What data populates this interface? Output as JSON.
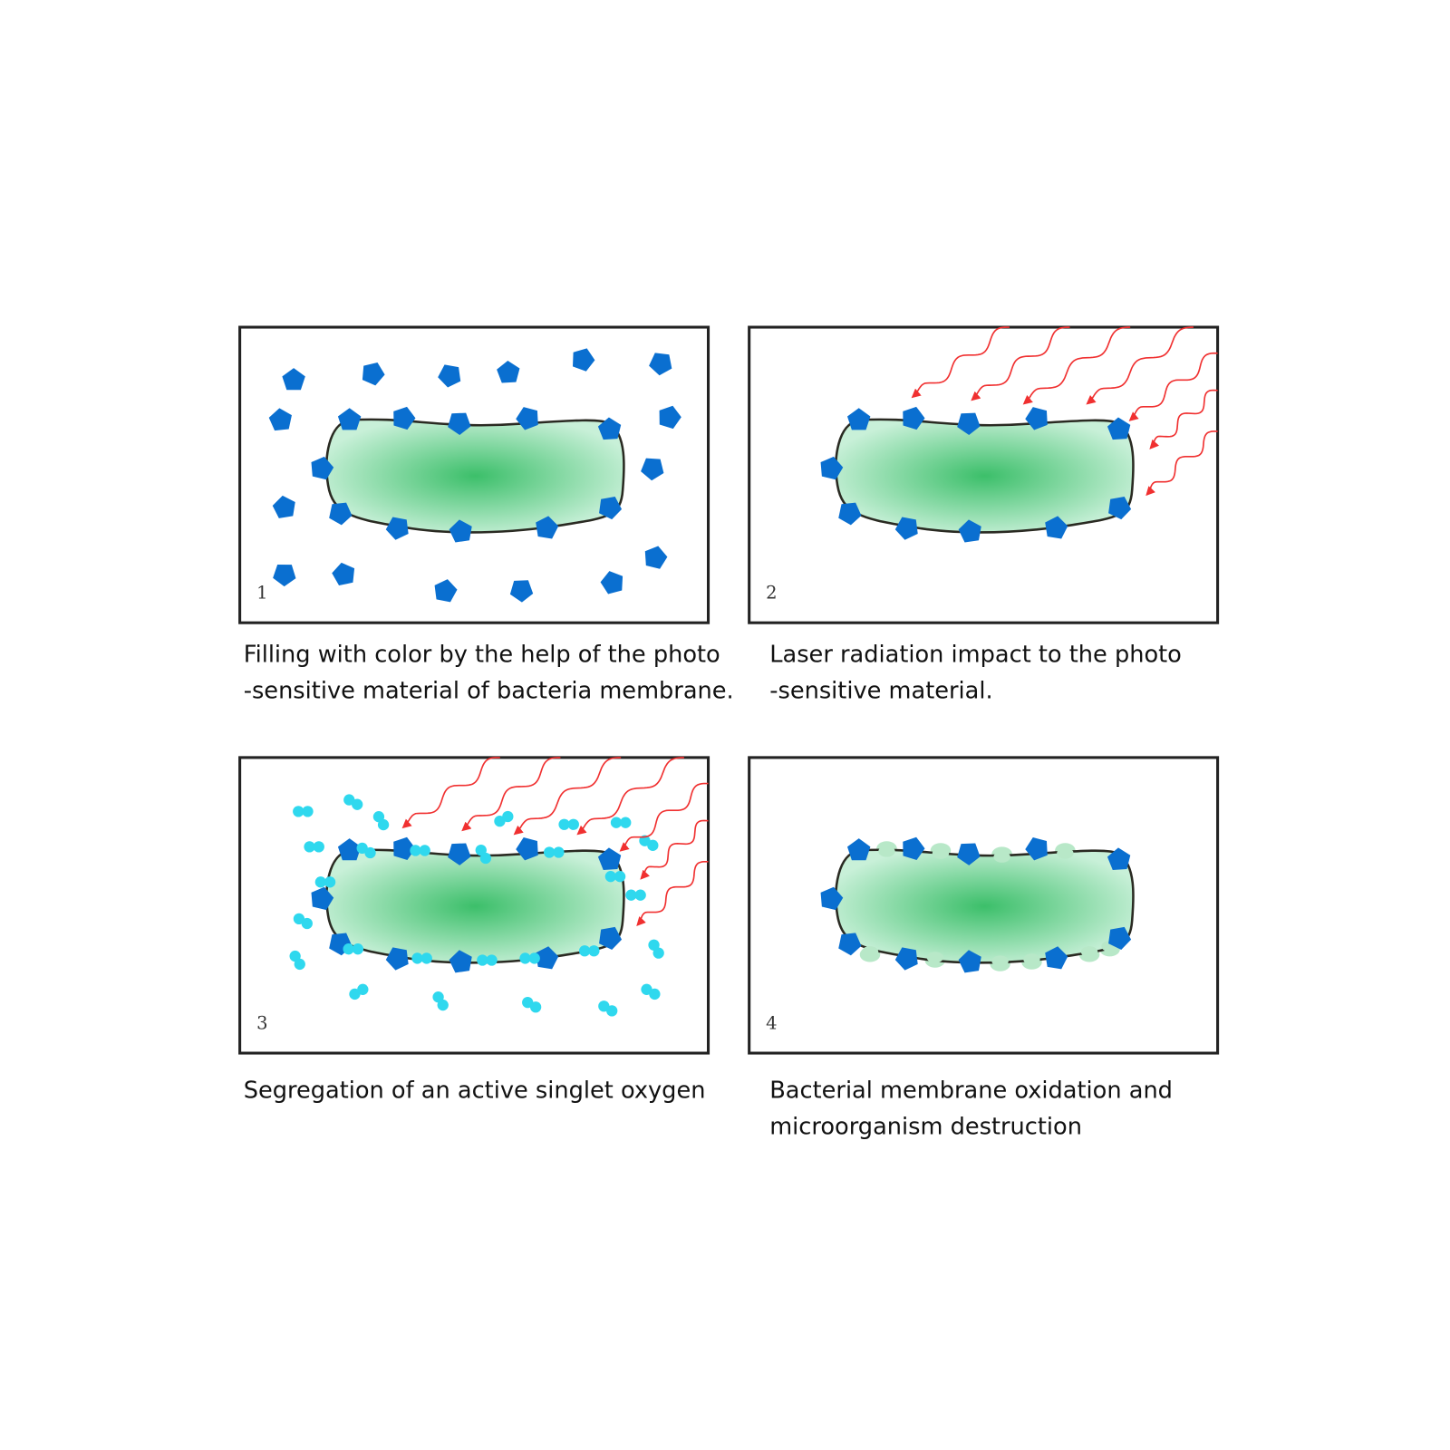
{
  "panels": [
    {
      "number": "1",
      "caption": [
        "Filling with color by the help of the photo",
        "-sensitive material of bacteria membrane."
      ]
    },
    {
      "number": "2",
      "caption": [
        "Laser radiation impact to the photo",
        "-sensitive material."
      ]
    },
    {
      "number": "3",
      "caption": [
        "Segregation of an active singlet oxygen",
        ""
      ]
    },
    {
      "number": "4",
      "caption": [
        "Bacterial membrane oxidation and",
        "microorganism destruction"
      ]
    }
  ],
  "colors": {
    "photosensitizer": "#0a6fd0",
    "singlet_oxygen": "#2fd8ee",
    "laser": "#f03030",
    "bacterium_center": "#3cbf6a",
    "bacterium_edge": "#c8f0d8",
    "frame": "#222222"
  }
}
